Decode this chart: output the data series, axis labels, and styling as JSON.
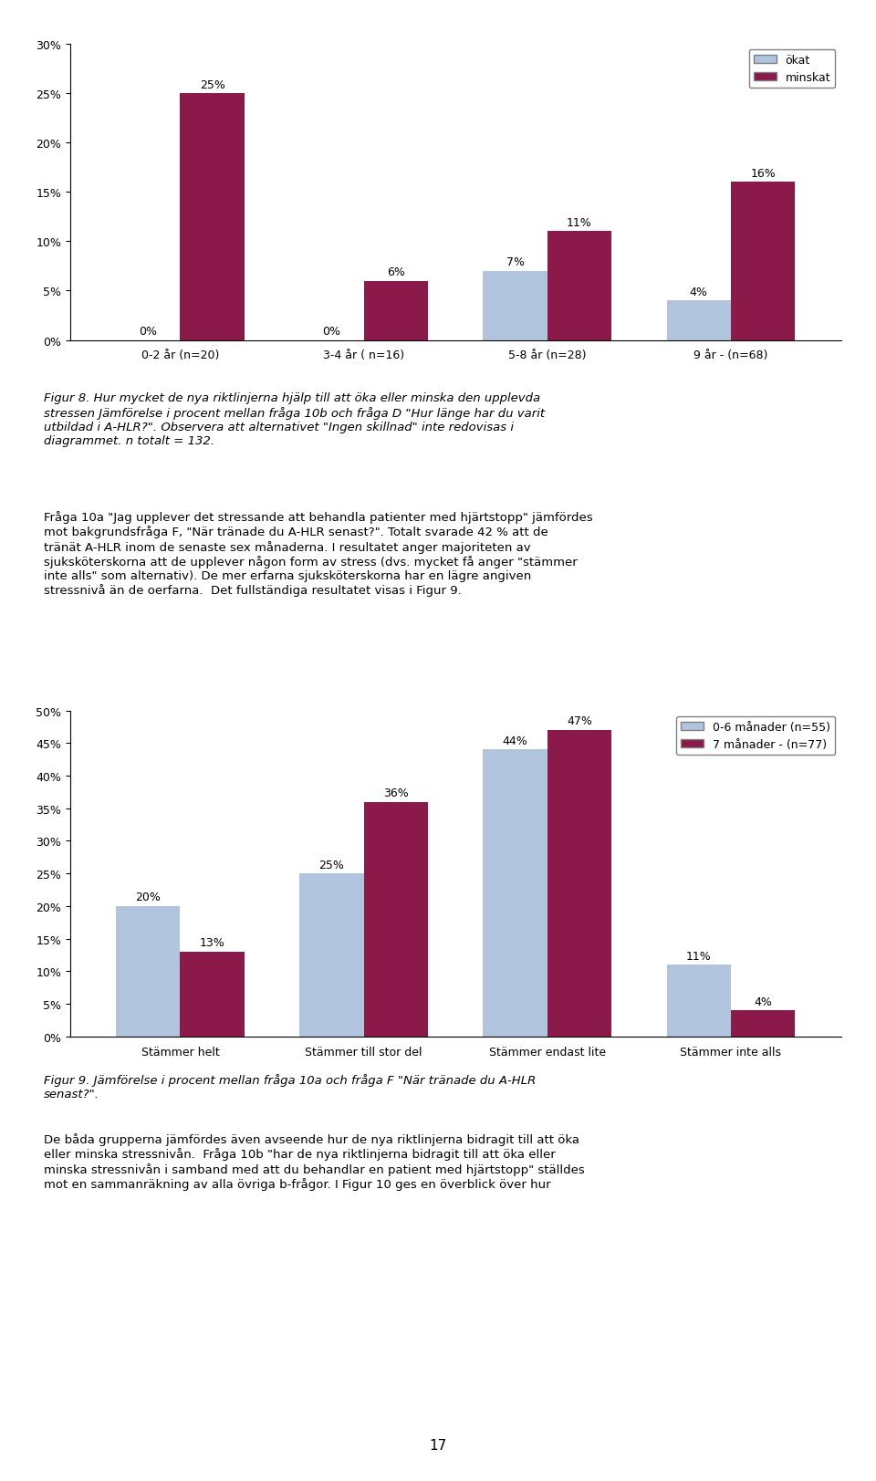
{
  "chart1": {
    "categories": [
      "0-2 år (n=20)",
      "3-4 år ( n=16)",
      "5-8 år (n=28)",
      "9 år - (n=68)"
    ],
    "series": {
      "ökat": [
        0,
        0,
        7,
        4
      ],
      "minskat": [
        25,
        6,
        11,
        16
      ]
    },
    "colors": {
      "ökat": "#b0c4de",
      "minskat": "#8b1a4a"
    },
    "ylim": [
      0,
      30
    ],
    "yticks": [
      0,
      5,
      10,
      15,
      20,
      25,
      30
    ],
    "ytick_labels": [
      "0%",
      "5%",
      "10%",
      "15%",
      "20%",
      "25%",
      "30%"
    ]
  },
  "chart2": {
    "categories": [
      "Stämmer helt",
      "Stämmer till stor del",
      "Stämmer endast lite",
      "Stämmer inte alls"
    ],
    "series": {
      "0-6 månader (n=55)": [
        20,
        25,
        44,
        11
      ],
      "7 månader - (n=77)": [
        13,
        36,
        47,
        4
      ]
    },
    "colors": {
      "0-6 månader (n=55)": "#b0c4de",
      "7 månader - (n=77)": "#8b1a4a"
    },
    "ylim": [
      0,
      50
    ],
    "yticks": [
      0,
      5,
      10,
      15,
      20,
      25,
      30,
      35,
      40,
      45,
      50
    ],
    "ytick_labels": [
      "0%",
      "5%",
      "10%",
      "15%",
      "20%",
      "25%",
      "30%",
      "35%",
      "40%",
      "45%",
      "50%"
    ]
  },
  "text_blocks": [
    "Figur 8. Hur mycket de nya riktlinjerna hjälp till att öka eller minska den upplevda\nstressen Jämförelse i procent mellan fråga 10b och fråga D \"Hur länge har du varit\nutbildad i A-HLR?\". Observera att alternativet \"Ingen skillnad\" inte redovisas i\ndiagrammet. n totalt = 132.",
    "Fråga 10a \"Jag upplever det stressande att behandla patienter med hjärtstopp\" jämfördes\nmot bakgrundsfråga F, \"När tränade du A-HLR senast?\". Totalt svarade 42 % att de\ntränät A-HLR inom de senaste sex månaderna. I resultatet anger majoriteten av\nsjuksköterskorna att de upplever någon form av stress (dvs. mycket få anger \"stämmer\ninte alls\" som alternativ). De mer erfarna sjuksköterskorna har en lägre angiven\nstressnivå än de oerfarna.  Det fullständiga resultatet visas i Figur 9.",
    "Figur 9. Jämförelse i procent mellan fråga 10a och fråga F \"När tränade du A-HLR\nsenast?\".",
    "De båda grupperna jämfördes även avseende hur de nya riktlinjerna bidragit till att öka\neller minska stressnivån.  Fråga 10b \"har de nya riktlinjerna bidragit till att öka eller\nminska stressnivån i samband med att du behandlar en patient med hjärtstopp\" ställdes\nmot en sammanräkning av alla övriga b-frågor. I Figur 10 ges en överblick över hur"
  ],
  "page_number": "17"
}
